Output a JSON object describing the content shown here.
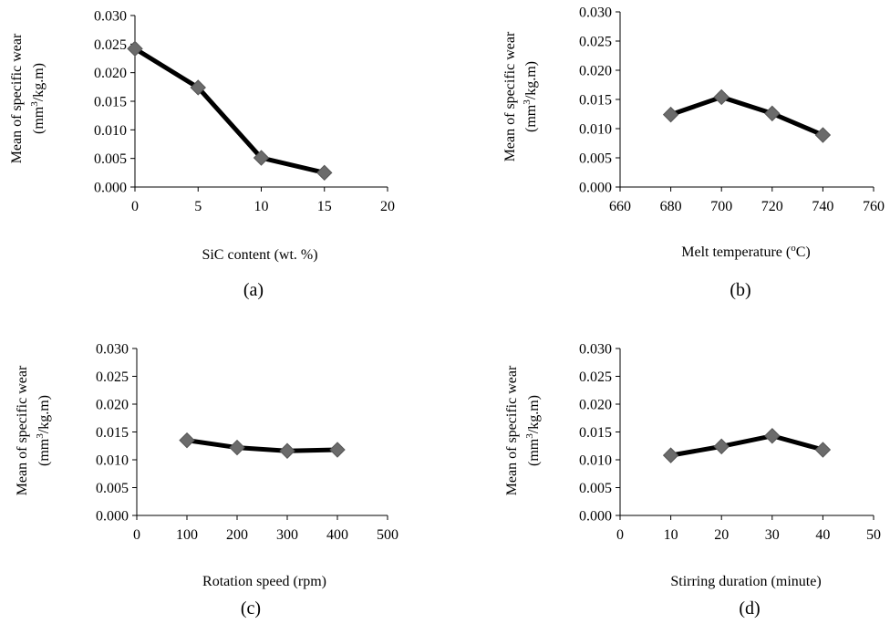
{
  "colors": {
    "line": "#000000",
    "marker": "#6b6b6b",
    "axis": "#000000"
  },
  "chart_data": [
    {
      "type": "line",
      "panel_label": "(a)",
      "xlabel": "SiC content (wt. %)",
      "ylabel_line1": "Mean of specific wear",
      "ylabel_line2_pre": "(mm",
      "ylabel_line2_sup": "3",
      "ylabel_line2_post": "/kg.m)",
      "xlim": [
        0,
        20
      ],
      "ylim": [
        0,
        0.03
      ],
      "x_ticks": [
        "0",
        "5",
        "10",
        "15",
        "20"
      ],
      "y_ticks": [
        "0.000",
        "0.005",
        "0.010",
        "0.015",
        "0.020",
        "0.025",
        "0.030"
      ],
      "x": [
        0,
        5,
        10,
        15
      ],
      "y": [
        0.0242,
        0.0174,
        0.0051,
        0.0025
      ],
      "marker": "diamond"
    },
    {
      "type": "line",
      "panel_label": "(b)",
      "xlabel_pre": "Melt temperature (",
      "xlabel_sup": "o",
      "xlabel_post": "C)",
      "ylabel_line1": "Mean of specific wear",
      "ylabel_line2_pre": "(mm",
      "ylabel_line2_sup": "3",
      "ylabel_line2_post": "/kg.m)",
      "xlim": [
        660,
        760
      ],
      "ylim": [
        0,
        0.03
      ],
      "x_ticks": [
        "660",
        "680",
        "700",
        "720",
        "740",
        "760"
      ],
      "y_ticks": [
        "0.000",
        "0.005",
        "0.010",
        "0.015",
        "0.020",
        "0.025",
        "0.030"
      ],
      "x": [
        680,
        700,
        720,
        740
      ],
      "y": [
        0.0124,
        0.0154,
        0.0126,
        0.0089
      ],
      "marker": "diamond"
    },
    {
      "type": "line",
      "panel_label": "(c)",
      "xlabel": "Rotation speed (rpm)",
      "ylabel_line1": "Mean of specific wear",
      "ylabel_line2_pre": "(mm",
      "ylabel_line2_sup": "3",
      "ylabel_line2_post": "/kg.m)",
      "xlim": [
        0,
        500
      ],
      "ylim": [
        0,
        0.03
      ],
      "x_ticks": [
        "0",
        "100",
        "200",
        "300",
        "400",
        "500"
      ],
      "y_ticks": [
        "0.000",
        "0.005",
        "0.010",
        "0.015",
        "0.020",
        "0.025",
        "0.030"
      ],
      "x": [
        100,
        200,
        300,
        400
      ],
      "y": [
        0.0135,
        0.0122,
        0.0116,
        0.0118
      ],
      "marker": "diamond"
    },
    {
      "type": "line",
      "panel_label": "(d)",
      "xlabel": "Stirring duration (minute)",
      "ylabel_line1": "Mean of specific wear",
      "ylabel_line2_pre": "(mm",
      "ylabel_line2_sup": "3",
      "ylabel_line2_post": "/kg.m)",
      "xlim": [
        0,
        50
      ],
      "ylim": [
        0,
        0.03
      ],
      "x_ticks": [
        "0",
        "10",
        "20",
        "30",
        "40",
        "50"
      ],
      "y_ticks": [
        "0.000",
        "0.005",
        "0.010",
        "0.015",
        "0.020",
        "0.025",
        "0.030"
      ],
      "x": [
        10,
        20,
        30,
        40
      ],
      "y": [
        0.0108,
        0.0124,
        0.0143,
        0.0118
      ],
      "marker": "diamond"
    }
  ]
}
